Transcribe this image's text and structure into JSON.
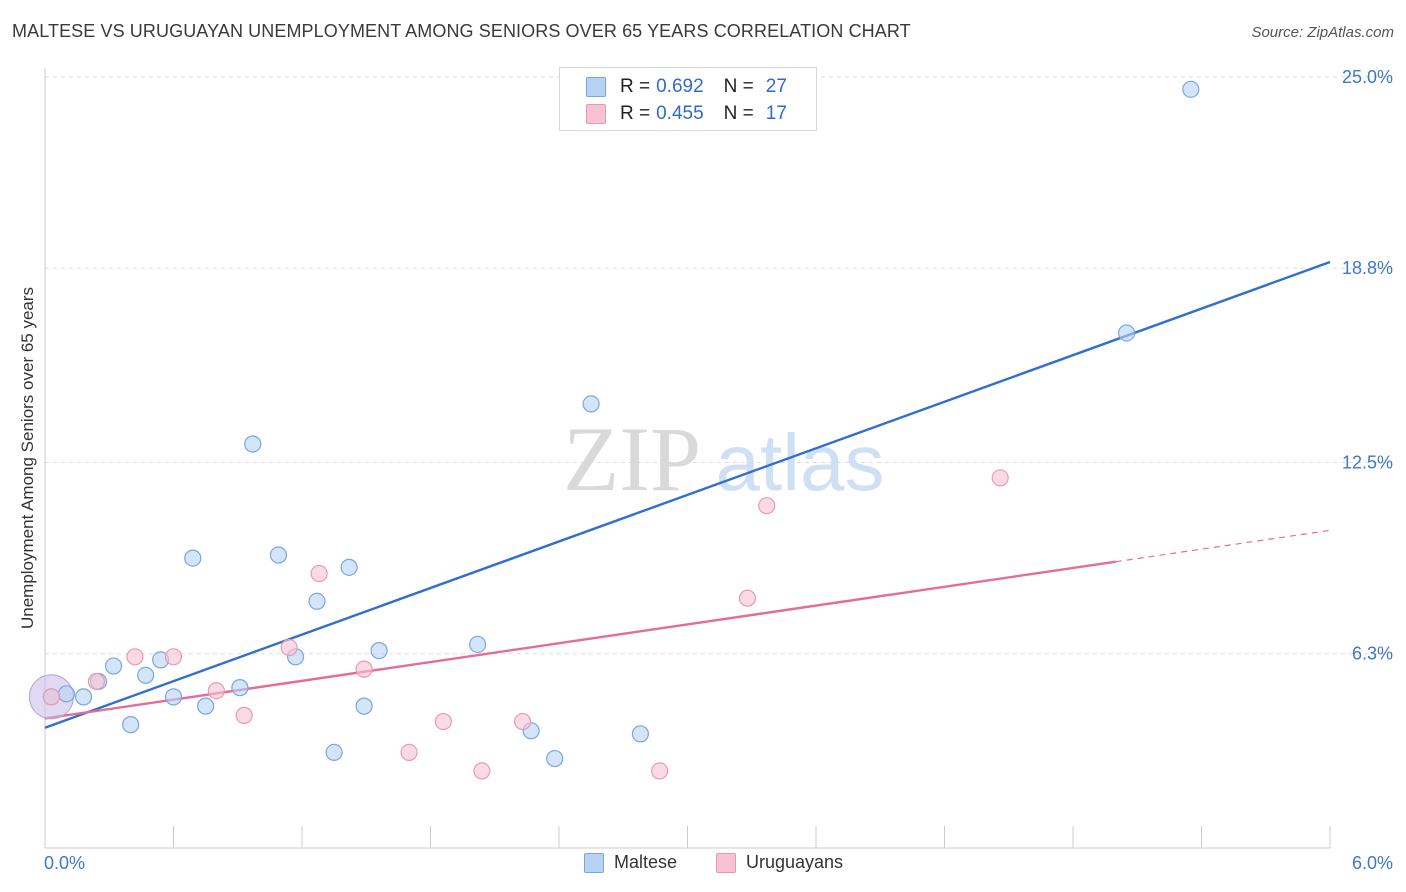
{
  "title": "MALTESE VS URUGUAYAN UNEMPLOYMENT AMONG SENIORS OVER 65 YEARS CORRELATION CHART",
  "source": "Source: ZipAtlas.com",
  "watermark": {
    "zip": "ZIP",
    "atlas": "atlas"
  },
  "colors": {
    "maltese_fill": "#b8d2f5",
    "maltese_stroke": "#7aa6e0",
    "maltese_line": "#2f6fd0",
    "uruguayan_fill": "#f7c3d3",
    "uruguayan_stroke": "#e89ab4",
    "uruguayan_line": "#e46c98",
    "axis_text": "#3f77c9",
    "grid": "#dddddd"
  },
  "legend": {
    "rows": [
      {
        "r_label": "R =",
        "r_value": "0.692",
        "n_label": "N =",
        "n_value": "27",
        "color": "#b8d2f5",
        "border": "#7aa6e0"
      },
      {
        "r_label": "R =",
        "r_value": "0.455",
        "n_label": "N =",
        "n_value": "17",
        "color": "#f7c3d3",
        "border": "#e89ab4"
      }
    ]
  },
  "bottom_legend": {
    "maltese": "Maltese",
    "uruguayans": "Uruguayans"
  },
  "chart_data": {
    "type": "scatter",
    "title": "MALTESE VS URUGUAYAN UNEMPLOYMENT AMONG SENIORS OVER 65 YEARS CORRELATION CHART",
    "xlabel": "",
    "ylabel": "Unemployment Among Seniors over 65 years",
    "xlim": [
      0,
      6.0
    ],
    "ylim": [
      0,
      25.0
    ],
    "x_tick_labels": [
      "0.0%",
      "6.0%"
    ],
    "y_ticks": [
      6.3,
      12.5,
      18.8,
      25.0
    ],
    "y_tick_labels": [
      "6.3%",
      "12.5%",
      "18.8%",
      "25.0%"
    ],
    "series": [
      {
        "name": "Maltese",
        "points": [
          [
            0.03,
            4.9
          ],
          [
            0.1,
            5.0
          ],
          [
            0.18,
            4.9
          ],
          [
            0.25,
            5.4
          ],
          [
            0.32,
            5.9
          ],
          [
            0.4,
            4.0
          ],
          [
            0.47,
            5.6
          ],
          [
            0.54,
            6.1
          ],
          [
            0.6,
            4.9
          ],
          [
            0.69,
            9.4
          ],
          [
            0.75,
            4.6
          ],
          [
            0.91,
            5.2
          ],
          [
            0.97,
            13.1
          ],
          [
            1.09,
            9.5
          ],
          [
            1.17,
            6.2
          ],
          [
            1.27,
            8.0
          ],
          [
            1.35,
            3.1
          ],
          [
            1.42,
            9.1
          ],
          [
            1.49,
            4.6
          ],
          [
            1.56,
            6.4
          ],
          [
            2.02,
            6.6
          ],
          [
            2.27,
            3.8
          ],
          [
            2.38,
            2.9
          ],
          [
            2.55,
            14.4
          ],
          [
            2.78,
            3.7
          ],
          [
            5.05,
            16.7
          ],
          [
            5.35,
            24.6
          ]
        ],
        "trend": {
          "x": [
            0.0,
            6.0
          ],
          "y": [
            3.9,
            19.0
          ]
        }
      },
      {
        "name": "Uruguayans",
        "points": [
          [
            0.03,
            4.9
          ],
          [
            0.24,
            5.4
          ],
          [
            0.42,
            6.2
          ],
          [
            0.6,
            6.2
          ],
          [
            0.8,
            5.1
          ],
          [
            0.93,
            4.3
          ],
          [
            1.14,
            6.5
          ],
          [
            1.28,
            8.9
          ],
          [
            1.49,
            5.8
          ],
          [
            1.7,
            3.1
          ],
          [
            1.86,
            4.1
          ],
          [
            2.04,
            2.5
          ],
          [
            2.23,
            4.1
          ],
          [
            2.87,
            2.5
          ],
          [
            3.28,
            8.1
          ],
          [
            3.37,
            11.1
          ],
          [
            4.46,
            12.0
          ]
        ],
        "trend": {
          "x": [
            0.0,
            6.0
          ],
          "y": [
            4.2,
            10.3
          ]
        },
        "trend_solid_until_x": 5.0
      }
    ]
  }
}
